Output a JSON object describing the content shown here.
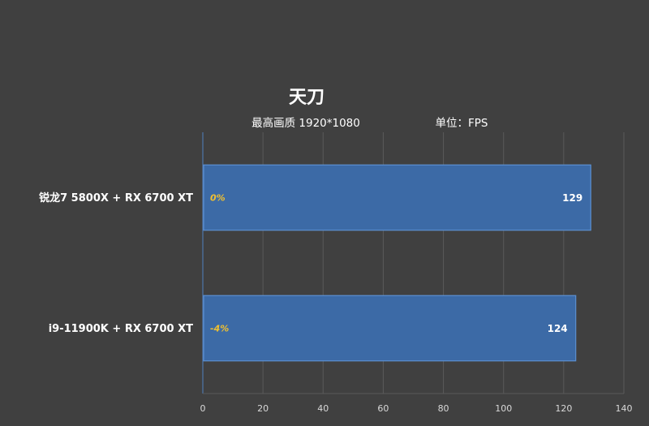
{
  "chart_data": {
    "type": "bar",
    "orientation": "horizontal",
    "title": "天刀",
    "subtitle_left": "最高画质 1920*1080",
    "subtitle_right": "单位：FPS",
    "categories": [
      "锐龙7 5800X + RX 6700 XT",
      "i9-11900K + RX 6700 XT"
    ],
    "values": [
      129,
      124
    ],
    "percent_labels": [
      "0%",
      "-4%"
    ],
    "xlim": [
      0,
      140
    ],
    "ticks": [
      0,
      20,
      40,
      60,
      80,
      100,
      120,
      140
    ],
    "grid": true,
    "legend": "none",
    "colors": {
      "background": "#404040",
      "bar": "#3c6aa6",
      "bar_edge": "#5b8fd0",
      "grid": "#5a5a5a",
      "axis": "#4f7fbf",
      "percent": "#f0c030"
    }
  }
}
